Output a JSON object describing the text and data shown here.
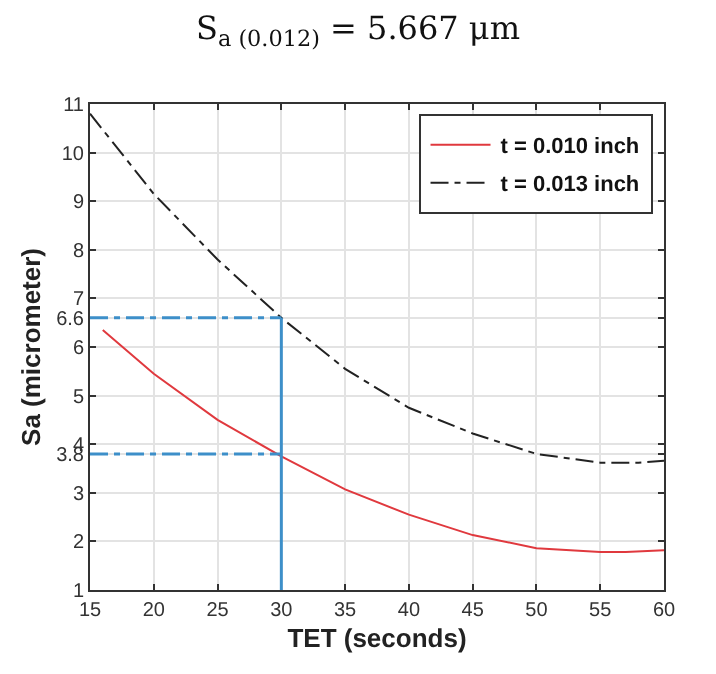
{
  "chart_data": {
    "type": "line",
    "title": "S$_{a (0.012)}$ = 5.667 μm",
    "xlabel": "TET (seconds)",
    "ylabel": "Sa (micrometer)",
    "series": [
      {
        "name": "t = 0.010 inch",
        "color": "#e0393e",
        "line_style": "solid",
        "x": [
          16,
          20,
          25,
          30,
          35,
          40,
          45,
          50,
          55,
          57,
          60
        ],
        "values": [
          6.35,
          5.45,
          4.5,
          3.75,
          3.07,
          2.55,
          2.13,
          1.86,
          1.78,
          1.78,
          1.82
        ]
      },
      {
        "name": "t = 0.013 inch",
        "color": "#222222",
        "line_style": "dashdot",
        "x": [
          15,
          20,
          25,
          30,
          35,
          40,
          45,
          50,
          55,
          58,
          60
        ],
        "values": [
          10.8,
          9.15,
          7.8,
          6.6,
          5.55,
          4.75,
          4.22,
          3.8,
          3.62,
          3.62,
          3.66
        ]
      }
    ],
    "xlim": [
      15,
      60
    ],
    "xticks": [
      15,
      20,
      25,
      30,
      35,
      40,
      45,
      50,
      55,
      60
    ],
    "ylim": [
      1,
      11
    ],
    "yticks": [
      1,
      2,
      3,
      {
        "value": 3.8,
        "label": "3.8"
      },
      4,
      5,
      6,
      {
        "value": 6.6,
        "label": "6.6"
      },
      7,
      8,
      9,
      10,
      11
    ],
    "ref_lines": [
      {
        "axis": "y",
        "value": 6.6,
        "color": "#3d8fc9",
        "line_style": "dashdot"
      },
      {
        "axis": "y",
        "value": 3.8,
        "color": "#3d8fc9",
        "line_style": "dashdot"
      },
      {
        "axis": "x",
        "value": 30,
        "color": "#3d8fc9",
        "line_style": "solid"
      }
    ],
    "grid": true,
    "legend": "top right",
    "marker": "none"
  }
}
